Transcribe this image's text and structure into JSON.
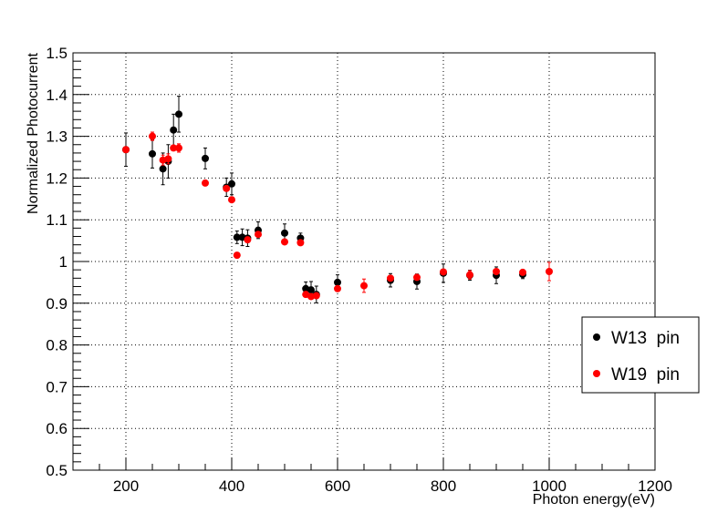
{
  "chart_data": {
    "type": "scatter",
    "xlabel": "Photon energy(eV)",
    "ylabel": "Normalized Photocurrent",
    "xlim": [
      100,
      1200
    ],
    "ylim": [
      0.5,
      1.5
    ],
    "x_ticks": [
      200,
      400,
      600,
      800,
      1000,
      1200
    ],
    "x_tick_labels": [
      "200",
      "400",
      "600",
      "800",
      "1000",
      "1200"
    ],
    "y_ticks": [
      0.5,
      0.6,
      0.7,
      0.8,
      0.9,
      1.0,
      1.1,
      1.2,
      1.3,
      1.4,
      1.5
    ],
    "y_tick_labels": [
      "0.5",
      "0.6",
      "0.7",
      "0.8",
      "0.9",
      "1",
      "1.1",
      "1.2",
      "1.3",
      "1.4",
      "1.5"
    ],
    "grid": true,
    "legend_position": "right",
    "series": [
      {
        "name": "W13  pin",
        "color": "#000000",
        "points": [
          {
            "x": 200,
            "y": 1.268,
            "err": 0.04
          },
          {
            "x": 250,
            "y": 1.258,
            "err": 0.034
          },
          {
            "x": 270,
            "y": 1.222,
            "err": 0.038
          },
          {
            "x": 280,
            "y": 1.24,
            "err": 0.04
          },
          {
            "x": 290,
            "y": 1.315,
            "err": 0.038
          },
          {
            "x": 300,
            "y": 1.353,
            "err": 0.043
          },
          {
            "x": 350,
            "y": 1.247,
            "err": 0.025
          },
          {
            "x": 390,
            "y": 1.178,
            "err": 0.022
          },
          {
            "x": 400,
            "y": 1.186,
            "err": 0.026
          },
          {
            "x": 410,
            "y": 1.058,
            "err": 0.015
          },
          {
            "x": 420,
            "y": 1.058,
            "err": 0.02
          },
          {
            "x": 430,
            "y": 1.056,
            "err": 0.02
          },
          {
            "x": 450,
            "y": 1.075,
            "err": 0.02
          },
          {
            "x": 500,
            "y": 1.068,
            "err": 0.022
          },
          {
            "x": 530,
            "y": 1.056,
            "err": 0.012
          },
          {
            "x": 540,
            "y": 0.935,
            "err": 0.016
          },
          {
            "x": 550,
            "y": 0.932,
            "err": 0.02
          },
          {
            "x": 560,
            "y": 0.921,
            "err": 0.02
          },
          {
            "x": 600,
            "y": 0.95,
            "err": 0.018
          },
          {
            "x": 700,
            "y": 0.955,
            "err": 0.016
          },
          {
            "x": 750,
            "y": 0.952,
            "err": 0.018
          },
          {
            "x": 800,
            "y": 0.972,
            "err": 0.022
          },
          {
            "x": 850,
            "y": 0.967,
            "err": 0.012
          },
          {
            "x": 900,
            "y": 0.967,
            "err": 0.02
          },
          {
            "x": 950,
            "y": 0.969,
            "err": 0.01
          }
        ]
      },
      {
        "name": "W19  pin",
        "color": "#ff0000",
        "points": [
          {
            "x": 200,
            "y": 1.268,
            "err": 0
          },
          {
            "x": 250,
            "y": 1.3,
            "err": 0.01
          },
          {
            "x": 270,
            "y": 1.243,
            "err": 0.012
          },
          {
            "x": 280,
            "y": 1.246,
            "err": 0.012
          },
          {
            "x": 290,
            "y": 1.272,
            "err": 0
          },
          {
            "x": 300,
            "y": 1.272,
            "err": 0.01
          },
          {
            "x": 350,
            "y": 1.188,
            "err": 0
          },
          {
            "x": 390,
            "y": 1.175,
            "err": 0
          },
          {
            "x": 400,
            "y": 1.148,
            "err": 0
          },
          {
            "x": 410,
            "y": 1.015,
            "err": 0
          },
          {
            "x": 430,
            "y": 1.052,
            "err": 0
          },
          {
            "x": 450,
            "y": 1.065,
            "err": 0
          },
          {
            "x": 500,
            "y": 1.047,
            "err": 0
          },
          {
            "x": 530,
            "y": 1.045,
            "err": 0
          },
          {
            "x": 540,
            "y": 0.921,
            "err": 0
          },
          {
            "x": 550,
            "y": 0.916,
            "err": 0
          },
          {
            "x": 560,
            "y": 0.918,
            "err": 0
          },
          {
            "x": 600,
            "y": 0.935,
            "err": 0
          },
          {
            "x": 650,
            "y": 0.942,
            "err": 0.016
          },
          {
            "x": 700,
            "y": 0.96,
            "err": 0
          },
          {
            "x": 750,
            "y": 0.962,
            "err": 0
          },
          {
            "x": 800,
            "y": 0.975,
            "err": 0
          },
          {
            "x": 850,
            "y": 0.968,
            "err": 0.01
          },
          {
            "x": 900,
            "y": 0.976,
            "err": 0
          },
          {
            "x": 950,
            "y": 0.974,
            "err": 0
          },
          {
            "x": 1000,
            "y": 0.976,
            "err": 0.022
          }
        ]
      }
    ]
  }
}
